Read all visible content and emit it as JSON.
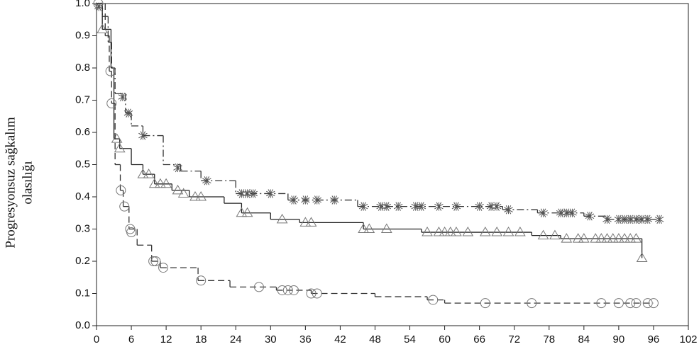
{
  "chart_data": {
    "type": "step",
    "y_label_lines": [
      "Progresyonsuz sağkalım",
      "olasılığı"
    ],
    "xlim": [
      0,
      102
    ],
    "xticks": [
      0,
      6,
      12,
      18,
      24,
      30,
      36,
      42,
      48,
      54,
      60,
      66,
      72,
      78,
      84,
      90,
      96,
      102
    ],
    "ylim": [
      0,
      1
    ],
    "yticks": [
      {
        "value": 0,
        "label": "0.0"
      },
      0.1,
      0.2,
      0.3,
      0.4,
      0.5,
      0.6,
      0.7,
      0.8,
      0.9,
      {
        "value": 1,
        "label": "1.0"
      }
    ],
    "grid": false,
    "series": [
      {
        "color": "#333333",
        "marker_color": "#555555",
        "marker": "star",
        "dash": "dash-dot",
        "x": [
          0,
          1,
          2,
          2.6,
          3.2,
          5,
          6,
          8,
          11.5,
          14.5,
          18,
          24,
          33,
          45,
          70,
          76,
          84,
          88
        ],
        "values": [
          1,
          0.96,
          0.88,
          0.8,
          0.72,
          0.66,
          0.62,
          0.59,
          0.5,
          0.48,
          0.45,
          0.41,
          0.39,
          0.37,
          0.36,
          0.35,
          0.34,
          0.33
        ],
        "censor_x": [
          0.4,
          4.5,
          5.5,
          8,
          14,
          19,
          25,
          26,
          27,
          30,
          34,
          36,
          38,
          41,
          46,
          49,
          50,
          52,
          55,
          56,
          59,
          62,
          66,
          68,
          69,
          71,
          77,
          80,
          81,
          82,
          85,
          88,
          90,
          91,
          92,
          93,
          94,
          95,
          97
        ],
        "censor_values": [
          0.99,
          0.71,
          0.66,
          0.59,
          0.49,
          0.45,
          0.41,
          0.41,
          0.41,
          0.41,
          0.39,
          0.39,
          0.39,
          0.39,
          0.37,
          0.37,
          0.37,
          0.37,
          0.37,
          0.37,
          0.37,
          0.37,
          0.37,
          0.37,
          0.37,
          0.36,
          0.35,
          0.35,
          0.35,
          0.35,
          0.34,
          0.33,
          0.33,
          0.33,
          0.33,
          0.33,
          0.33,
          0.33,
          0.33
        ]
      },
      {
        "color": "#222222",
        "marker_color": "#777777",
        "marker": "triangle",
        "dash": "solid",
        "x": [
          0,
          1,
          2.5,
          3,
          4,
          6,
          8,
          10,
          13,
          16,
          22,
          25,
          30,
          35,
          46,
          56,
          75,
          80,
          94
        ],
        "values": [
          1,
          0.92,
          0.8,
          0.58,
          0.55,
          0.5,
          0.47,
          0.44,
          0.42,
          0.4,
          0.38,
          0.35,
          0.33,
          0.32,
          0.3,
          0.29,
          0.28,
          0.27,
          0.21
        ],
        "censor_x": [
          1,
          3.5,
          4,
          8,
          9,
          10,
          11,
          12,
          14,
          15,
          17,
          18,
          25,
          26,
          32,
          36,
          37,
          46,
          47,
          50,
          57,
          59,
          60,
          61,
          62,
          64,
          67,
          69,
          71,
          73,
          77,
          79,
          81,
          83,
          84,
          86,
          87,
          88,
          89,
          90,
          91,
          92,
          93,
          94
        ],
        "censor_values": [
          0.92,
          0.58,
          0.55,
          0.47,
          0.47,
          0.44,
          0.44,
          0.44,
          0.42,
          0.41,
          0.4,
          0.4,
          0.35,
          0.35,
          0.33,
          0.32,
          0.32,
          0.3,
          0.3,
          0.3,
          0.29,
          0.29,
          0.29,
          0.29,
          0.29,
          0.29,
          0.29,
          0.29,
          0.29,
          0.29,
          0.28,
          0.28,
          0.27,
          0.27,
          0.27,
          0.27,
          0.27,
          0.27,
          0.27,
          0.27,
          0.27,
          0.27,
          0.27,
          0.21
        ]
      },
      {
        "color": "#333333",
        "marker_color": "#777777",
        "marker": "circle",
        "dash": "dashed",
        "x": [
          0,
          1.5,
          2.2,
          2.6,
          3.2,
          4.1,
          4.6,
          5.6,
          7,
          9.5,
          11,
          17.5,
          23,
          31,
          37,
          48,
          57,
          60
        ],
        "values": [
          1,
          0.9,
          0.79,
          0.69,
          0.5,
          0.42,
          0.37,
          0.3,
          0.25,
          0.2,
          0.18,
          0.14,
          0.12,
          0.11,
          0.1,
          0.09,
          0.08,
          0.07
        ],
        "censor_x": [
          0.3,
          2.4,
          2.6,
          4.2,
          4.8,
          5.8,
          6,
          9.8,
          10.2,
          11.5,
          18,
          28,
          32,
          33,
          34,
          37,
          38,
          58,
          67,
          75,
          87,
          90,
          92,
          93,
          95,
          96
        ],
        "censor_values": [
          1,
          0.79,
          0.69,
          0.42,
          0.37,
          0.3,
          0.29,
          0.2,
          0.2,
          0.18,
          0.14,
          0.12,
          0.11,
          0.11,
          0.11,
          0.1,
          0.1,
          0.08,
          0.07,
          0.07,
          0.07,
          0.07,
          0.07,
          0.07,
          0.07,
          0.07
        ]
      }
    ]
  }
}
